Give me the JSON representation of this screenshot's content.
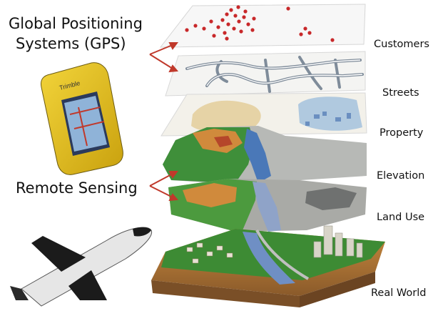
{
  "left_labels": {
    "gps_line1": "Global Positioning",
    "gps_line2": "Systems (GPS)",
    "remote_sensing": "Remote Sensing"
  },
  "layers": [
    {
      "label": "Customers"
    },
    {
      "label": "Streets"
    },
    {
      "label": "Property"
    },
    {
      "label": "Elevation"
    },
    {
      "label": "Land Use"
    },
    {
      "label": "Real World"
    }
  ],
  "device_brand": "Trimble",
  "colors": {
    "arrow": "#c0392b",
    "customer_dots": "#c8282a",
    "streets": "#7f8c9a",
    "terrain_green": "#3f8f3a",
    "terrain_orange": "#d08a3c",
    "water": "#4a78b8"
  }
}
